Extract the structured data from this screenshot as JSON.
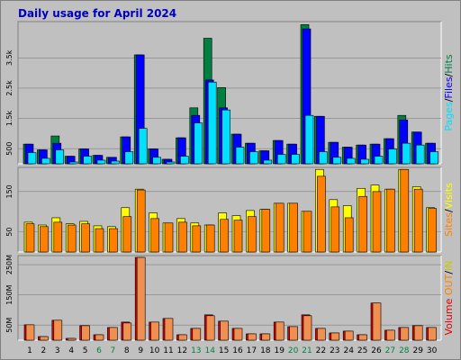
{
  "chart_data": [
    {
      "type": "bar",
      "title": "Daily usage for April 2024",
      "ylim": [
        0,
        4700
      ],
      "yticks": [
        500,
        {
          "value": 1500,
          "label": "1.5k"
        },
        {
          "value": 2500,
          "label": "2.5k"
        },
        {
          "value": 3500,
          "label": "3.5k"
        }
      ],
      "grid": true,
      "legend_separator": "/",
      "series": [
        {
          "name": "Hits",
          "color": "#008040",
          "values": [
            650,
            460,
            920,
            250,
            490,
            280,
            215,
            890,
            3600,
            490,
            150,
            860,
            1850,
            4150,
            2520,
            980,
            680,
            430,
            770,
            650,
            4600,
            1570,
            710,
            550,
            620,
            650,
            830,
            1600,
            1050,
            680
          ]
        },
        {
          "name": "Files",
          "color": "#0000ff",
          "values": [
            650,
            460,
            680,
            250,
            490,
            280,
            215,
            890,
            3600,
            490,
            150,
            860,
            1600,
            2770,
            1850,
            980,
            680,
            430,
            770,
            650,
            4460,
            1570,
            710,
            550,
            620,
            650,
            830,
            1450,
            1050,
            680
          ]
        },
        {
          "name": "Pages",
          "color": "#00e0ff",
          "values": [
            370,
            180,
            460,
            60,
            250,
            120,
            90,
            400,
            1170,
            215,
            60,
            250,
            1350,
            2700,
            1780,
            550,
            400,
            120,
            310,
            310,
            1600,
            400,
            215,
            180,
            150,
            250,
            490,
            680,
            620,
            400
          ]
        }
      ]
    },
    {
      "type": "bar",
      "ylim": [
        0,
        210
      ],
      "yticks": [
        50,
        150
      ],
      "grid": true,
      "legend_separator": "/",
      "series": [
        {
          "name": "Visits",
          "color": "#ffff00",
          "values": [
            74,
            67,
            85,
            70,
            76,
            65,
            63,
            110,
            156,
            97,
            72,
            83,
            72,
            67,
            97,
            90,
            103,
            106,
            121,
            121,
            101,
            205,
            130,
            115,
            158,
            166,
            156,
            205,
            162,
            110
          ]
        },
        {
          "name": "Sites",
          "color": "#ff8000",
          "values": [
            70,
            63,
            74,
            67,
            70,
            58,
            58,
            88,
            154,
            83,
            72,
            74,
            65,
            67,
            81,
            79,
            88,
            106,
            121,
            121,
            101,
            188,
            112,
            85,
            138,
            150,
            156,
            205,
            156,
            108
          ]
        }
      ]
    },
    {
      "type": "bar",
      "ylim": [
        0,
        280
      ],
      "yticks": [
        {
          "value": 50,
          "label": "50M"
        },
        {
          "value": 150,
          "label": "150M"
        },
        {
          "value": 250,
          "label": "250M"
        }
      ],
      "grid": true,
      "legend_separator": "/",
      "legend_title": "Volume",
      "legend_title_color": "#e00000",
      "categories": [
        "1",
        "2",
        "3",
        "4",
        "5",
        "6",
        "7",
        "8",
        "9",
        "10",
        "11",
        "12",
        "13",
        "14",
        "15",
        "16",
        "17",
        "18",
        "19",
        "20",
        "21",
        "22",
        "23",
        "24",
        "25",
        "26",
        "27",
        "28",
        "29",
        "30"
      ],
      "weekend": [
        false,
        false,
        false,
        false,
        false,
        true,
        true,
        false,
        false,
        false,
        false,
        false,
        true,
        true,
        false,
        false,
        false,
        false,
        false,
        true,
        true,
        false,
        false,
        false,
        false,
        false,
        true,
        true,
        false,
        false
      ],
      "weekend_color": "#008040",
      "series": [
        {
          "name": "IN",
          "color": "#e00000",
          "legend_color": "#c8c800",
          "values": [
            51,
            12,
            66,
            6,
            48,
            18,
            42,
            60,
            274,
            60,
            72,
            18,
            39,
            84,
            63,
            39,
            21,
            21,
            60,
            45,
            84,
            39,
            24,
            30,
            18,
            123,
            33,
            42,
            48,
            42
          ]
        },
        {
          "name": "OUT",
          "color": "#f09050",
          "legend_color": "#ff8000",
          "values": [
            51,
            12,
            66,
            6,
            48,
            18,
            42,
            57,
            274,
            60,
            72,
            18,
            39,
            81,
            63,
            39,
            21,
            21,
            60,
            45,
            81,
            39,
            24,
            30,
            18,
            123,
            33,
            42,
            48,
            42
          ]
        }
      ]
    }
  ]
}
